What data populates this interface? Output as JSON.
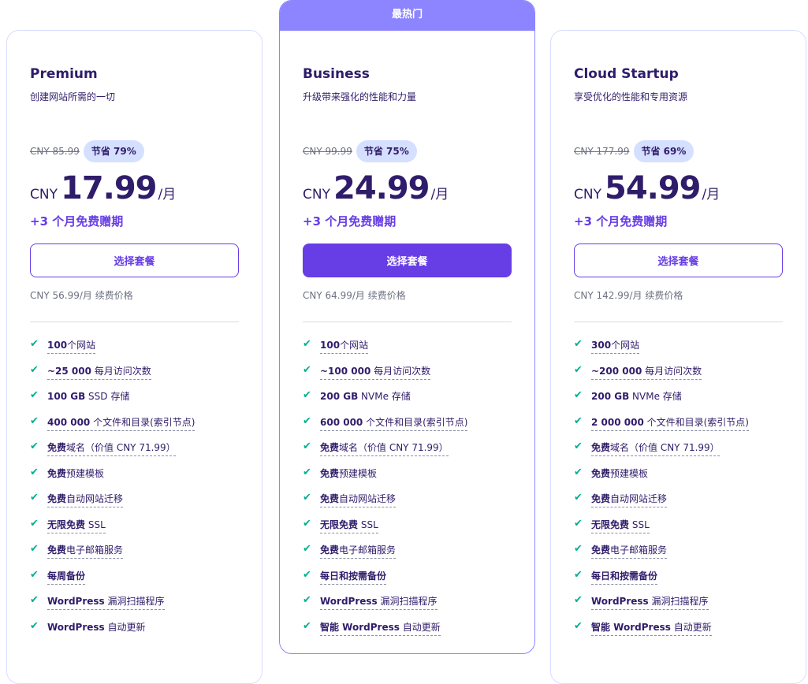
{
  "colors": {
    "accent": "#673de6",
    "ribbon": "#8c85ff",
    "check": "#00b090"
  },
  "plans": [
    {
      "name": "Premium",
      "subtitle": "创建网站所需的一切",
      "old_price": "CNY 85.99",
      "save": "节省 79%",
      "currency": "CNY",
      "price": "17.99",
      "per": "/月",
      "bonus": "+3 个月免费赠期",
      "button": "选择套餐",
      "renewal": "CNY 56.99/月 续费价格",
      "features": [
        {
          "b": "100",
          "t": "个网站",
          "u": true
        },
        {
          "b": "~25 000",
          "t": " 每月访问次数",
          "u": true
        },
        {
          "b": "100 GB",
          "t": " SSD 存储",
          "u": false
        },
        {
          "b": "400 000",
          "t": " 个文件和目录(索引节点)",
          "u": true
        },
        {
          "b": "免费",
          "t": "域名（价值 CNY 71.99）",
          "u": true
        },
        {
          "b": "免费",
          "t": "预建模板",
          "u": false
        },
        {
          "b": "免费",
          "t": "自动网站迁移",
          "u": true
        },
        {
          "b": "无限免费",
          "t": " SSL",
          "u": true
        },
        {
          "b": "免费",
          "t": "电子邮箱服务",
          "u": true
        },
        {
          "b": "每周备份",
          "t": "",
          "u": true
        },
        {
          "b": "WordPress",
          "t": " 漏洞扫描程序",
          "u": true
        },
        {
          "b": "WordPress",
          "t": " 自动更新",
          "u": false
        }
      ]
    },
    {
      "ribbon": "最热门",
      "name": "Business",
      "subtitle": "升级带来强化的性能和力量",
      "old_price": "CNY 99.99",
      "save": "节省 75%",
      "currency": "CNY",
      "price": "24.99",
      "per": "/月",
      "bonus": "+3 个月免费赠期",
      "button": "选择套餐",
      "renewal": "CNY 64.99/月 续费价格",
      "features": [
        {
          "b": "100",
          "t": "个网站",
          "u": true
        },
        {
          "b": "~100 000",
          "t": " 每月访问次数",
          "u": true
        },
        {
          "b": "200 GB",
          "t": " NVMe 存储",
          "u": false
        },
        {
          "b": "600 000",
          "t": " 个文件和目录(索引节点)",
          "u": true
        },
        {
          "b": "免费",
          "t": "域名（价值 CNY 71.99）",
          "u": true
        },
        {
          "b": "免费",
          "t": "预建模板",
          "u": false
        },
        {
          "b": "免费",
          "t": "自动网站迁移",
          "u": true
        },
        {
          "b": "无限免费",
          "t": " SSL",
          "u": true
        },
        {
          "b": "免费",
          "t": "电子邮箱服务",
          "u": true
        },
        {
          "b": "每日和按需备份",
          "t": "",
          "u": true
        },
        {
          "b": "WordPress",
          "t": " 漏洞扫描程序",
          "u": true
        },
        {
          "b": "智能 WordPress",
          "t": " 自动更新",
          "u": true
        }
      ]
    },
    {
      "name": "Cloud Startup",
      "subtitle": "享受优化的性能和专用资源",
      "old_price": "CNY 177.99",
      "save": "节省 69%",
      "currency": "CNY",
      "price": "54.99",
      "per": "/月",
      "bonus": "+3 个月免费赠期",
      "button": "选择套餐",
      "renewal": "CNY 142.99/月 续费价格",
      "features": [
        {
          "b": "300",
          "t": "个网站",
          "u": true
        },
        {
          "b": "~200 000",
          "t": " 每月访问次数",
          "u": true
        },
        {
          "b": "200 GB",
          "t": " NVMe 存储",
          "u": false
        },
        {
          "b": "2 000 000",
          "t": " 个文件和目录(索引节点)",
          "u": true
        },
        {
          "b": "免费",
          "t": "域名（价值 CNY 71.99）",
          "u": true
        },
        {
          "b": "免费",
          "t": "预建模板",
          "u": false
        },
        {
          "b": "免费",
          "t": "自动网站迁移",
          "u": true
        },
        {
          "b": "无限免费",
          "t": " SSL",
          "u": true
        },
        {
          "b": "免费",
          "t": "电子邮箱服务",
          "u": true
        },
        {
          "b": "每日和按需备份",
          "t": "",
          "u": true
        },
        {
          "b": "WordPress",
          "t": " 漏洞扫描程序",
          "u": true
        },
        {
          "b": "智能 WordPress",
          "t": " 自动更新",
          "u": true
        }
      ]
    }
  ]
}
